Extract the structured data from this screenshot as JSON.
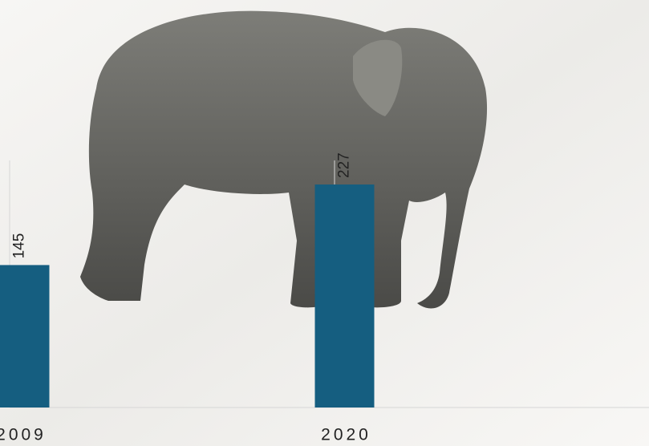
{
  "chart_data": {
    "type": "bar",
    "categories": [
      "2009",
      "2020"
    ],
    "values": [
      145,
      227
    ],
    "color": "#155e80"
  }
}
